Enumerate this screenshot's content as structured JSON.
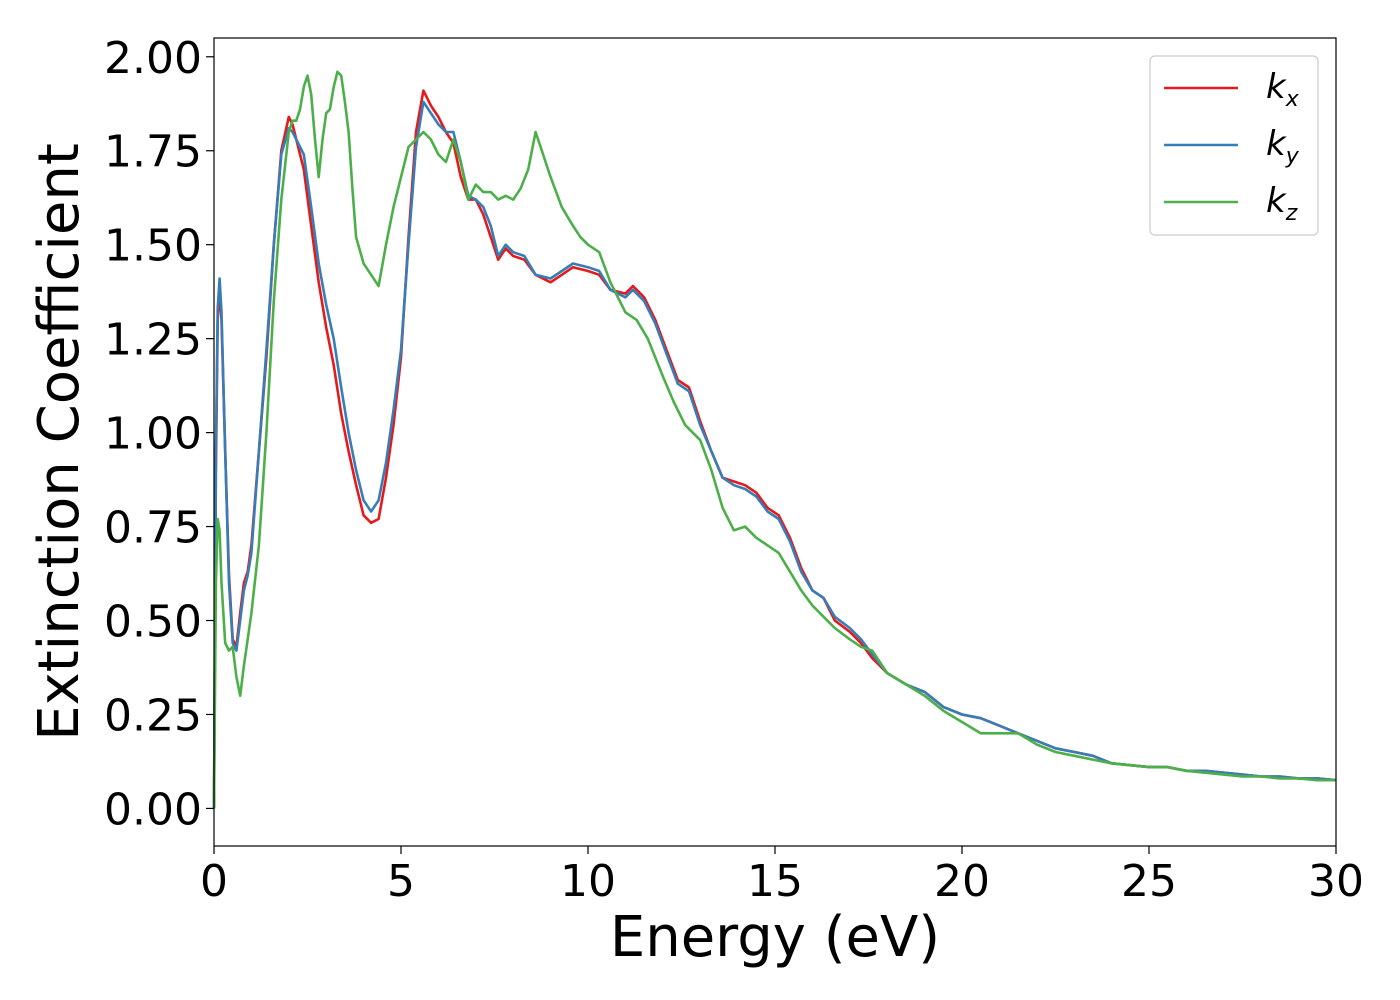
{
  "chart_data": {
    "type": "line",
    "xlabel": "Energy (eV)",
    "ylabel": "Extinction Coefficient",
    "xlim": [
      0,
      30
    ],
    "ylim": [
      -0.1,
      2.05
    ],
    "xticks": [
      0,
      5,
      10,
      15,
      20,
      25,
      30
    ],
    "yticks": [
      0.0,
      0.25,
      0.5,
      0.75,
      1.0,
      1.25,
      1.5,
      1.75,
      2.0
    ],
    "xtick_labels": [
      "0",
      "5",
      "10",
      "15",
      "20",
      "25",
      "30"
    ],
    "ytick_labels": [
      "0.00",
      "0.25",
      "0.50",
      "0.75",
      "1.00",
      "1.25",
      "1.50",
      "1.75",
      "2.00"
    ],
    "grid": false,
    "legend": "top-right",
    "series": [
      {
        "name": "k_x",
        "label_base": "k",
        "label_sub": "x",
        "color": "#e41a1c",
        "x": [
          0,
          0.05,
          0.1,
          0.15,
          0.2,
          0.3,
          0.4,
          0.5,
          0.6,
          0.7,
          0.8,
          0.9,
          1.0,
          1.2,
          1.4,
          1.6,
          1.8,
          2.0,
          2.1,
          2.2,
          2.4,
          2.6,
          2.8,
          3.0,
          3.2,
          3.4,
          3.6,
          3.8,
          4.0,
          4.2,
          4.4,
          4.6,
          4.8,
          5.0,
          5.2,
          5.4,
          5.6,
          5.8,
          6.0,
          6.2,
          6.4,
          6.6,
          6.8,
          7.0,
          7.2,
          7.4,
          7.6,
          7.8,
          8.0,
          8.3,
          8.6,
          9.0,
          9.3,
          9.6,
          10.0,
          10.3,
          10.6,
          11.0,
          11.2,
          11.5,
          11.8,
          12.1,
          12.4,
          12.7,
          13.0,
          13.3,
          13.6,
          13.9,
          14.2,
          14.5,
          14.8,
          15.1,
          15.4,
          15.7,
          16.0,
          16.3,
          16.6,
          17.0,
          17.3,
          17.6,
          18.0,
          18.5,
          19.0,
          19.5,
          20.0,
          20.5,
          21.0,
          21.5,
          22.0,
          22.5,
          23.0,
          23.5,
          24.0,
          24.5,
          25.0,
          25.5,
          26.0,
          26.5,
          27.0,
          27.5,
          28.0,
          28.5,
          29.0,
          29.5,
          30.0
        ],
        "y": [
          0.0,
          0.9,
          1.3,
          1.38,
          1.3,
          0.95,
          0.62,
          0.45,
          0.43,
          0.52,
          0.6,
          0.63,
          0.7,
          0.95,
          1.2,
          1.5,
          1.75,
          1.84,
          1.82,
          1.78,
          1.7,
          1.55,
          1.4,
          1.28,
          1.18,
          1.05,
          0.95,
          0.86,
          0.78,
          0.76,
          0.77,
          0.88,
          1.02,
          1.2,
          1.52,
          1.8,
          1.91,
          1.87,
          1.84,
          1.8,
          1.77,
          1.68,
          1.62,
          1.62,
          1.58,
          1.52,
          1.46,
          1.49,
          1.47,
          1.46,
          1.42,
          1.4,
          1.42,
          1.44,
          1.43,
          1.42,
          1.38,
          1.37,
          1.39,
          1.36,
          1.3,
          1.22,
          1.14,
          1.12,
          1.03,
          0.95,
          0.88,
          0.87,
          0.86,
          0.84,
          0.8,
          0.78,
          0.72,
          0.64,
          0.58,
          0.56,
          0.5,
          0.47,
          0.44,
          0.4,
          0.36,
          0.33,
          0.31,
          0.27,
          0.25,
          0.24,
          0.22,
          0.2,
          0.18,
          0.16,
          0.15,
          0.14,
          0.12,
          0.115,
          0.11,
          0.11,
          0.1,
          0.1,
          0.095,
          0.09,
          0.085,
          0.085,
          0.08,
          0.08,
          0.075
        ]
      },
      {
        "name": "k_y",
        "label_base": "k",
        "label_sub": "y",
        "color": "#377eb8",
        "x": [
          0,
          0.05,
          0.1,
          0.15,
          0.2,
          0.3,
          0.4,
          0.5,
          0.6,
          0.7,
          0.8,
          0.9,
          1.0,
          1.2,
          1.4,
          1.6,
          1.8,
          2.0,
          2.1,
          2.2,
          2.4,
          2.6,
          2.8,
          3.0,
          3.2,
          3.4,
          3.6,
          3.8,
          4.0,
          4.2,
          4.4,
          4.6,
          4.8,
          5.0,
          5.2,
          5.4,
          5.6,
          5.8,
          6.0,
          6.2,
          6.4,
          6.6,
          6.8,
          7.0,
          7.2,
          7.4,
          7.6,
          7.8,
          8.0,
          8.3,
          8.6,
          9.0,
          9.3,
          9.6,
          10.0,
          10.3,
          10.6,
          11.0,
          11.2,
          11.5,
          11.8,
          12.1,
          12.4,
          12.7,
          13.0,
          13.3,
          13.6,
          13.9,
          14.2,
          14.5,
          14.8,
          15.1,
          15.4,
          15.7,
          16.0,
          16.3,
          16.6,
          17.0,
          17.3,
          17.6,
          18.0,
          18.5,
          19.0,
          19.5,
          20.0,
          20.5,
          21.0,
          21.5,
          22.0,
          22.5,
          23.0,
          23.5,
          24.0,
          24.5,
          25.0,
          25.5,
          26.0,
          26.5,
          27.0,
          27.5,
          28.0,
          28.5,
          29.0,
          29.5,
          30.0
        ],
        "y": [
          0.0,
          0.95,
          1.33,
          1.41,
          1.32,
          0.95,
          0.6,
          0.44,
          0.42,
          0.5,
          0.58,
          0.62,
          0.68,
          0.95,
          1.22,
          1.5,
          1.74,
          1.81,
          1.8,
          1.78,
          1.74,
          1.6,
          1.45,
          1.34,
          1.25,
          1.12,
          1.0,
          0.9,
          0.82,
          0.79,
          0.82,
          0.92,
          1.06,
          1.22,
          1.5,
          1.76,
          1.88,
          1.85,
          1.82,
          1.8,
          1.8,
          1.72,
          1.63,
          1.62,
          1.6,
          1.55,
          1.47,
          1.5,
          1.48,
          1.47,
          1.42,
          1.41,
          1.43,
          1.45,
          1.44,
          1.43,
          1.38,
          1.36,
          1.38,
          1.35,
          1.29,
          1.21,
          1.13,
          1.11,
          1.02,
          0.95,
          0.88,
          0.86,
          0.85,
          0.83,
          0.79,
          0.77,
          0.71,
          0.63,
          0.58,
          0.56,
          0.51,
          0.48,
          0.45,
          0.41,
          0.36,
          0.33,
          0.31,
          0.27,
          0.25,
          0.24,
          0.22,
          0.2,
          0.18,
          0.16,
          0.15,
          0.14,
          0.12,
          0.115,
          0.11,
          0.11,
          0.1,
          0.1,
          0.095,
          0.09,
          0.085,
          0.085,
          0.08,
          0.08,
          0.075
        ]
      },
      {
        "name": "k_z",
        "label_base": "k",
        "label_sub": "z",
        "color": "#4daf4a",
        "x": [
          0,
          0.05,
          0.1,
          0.15,
          0.2,
          0.3,
          0.4,
          0.5,
          0.6,
          0.7,
          0.8,
          0.9,
          1.0,
          1.2,
          1.4,
          1.6,
          1.8,
          2.0,
          2.1,
          2.2,
          2.3,
          2.4,
          2.5,
          2.6,
          2.7,
          2.8,
          2.9,
          3.0,
          3.1,
          3.2,
          3.3,
          3.4,
          3.5,
          3.6,
          3.7,
          3.8,
          4.0,
          4.2,
          4.4,
          4.6,
          4.8,
          5.0,
          5.2,
          5.4,
          5.6,
          5.8,
          6.0,
          6.2,
          6.4,
          6.6,
          6.8,
          7.0,
          7.2,
          7.4,
          7.6,
          7.8,
          8.0,
          8.2,
          8.4,
          8.5,
          8.6,
          8.8,
          9.0,
          9.3,
          9.6,
          9.8,
          10.0,
          10.3,
          10.6,
          11.0,
          11.3,
          11.6,
          12.0,
          12.3,
          12.6,
          13.0,
          13.3,
          13.6,
          13.9,
          14.2,
          14.5,
          14.8,
          15.1,
          15.4,
          15.7,
          16.0,
          16.3,
          16.6,
          17.0,
          17.3,
          17.6,
          18.0,
          18.5,
          19.0,
          19.5,
          20.0,
          20.5,
          21.0,
          21.5,
          22.0,
          22.5,
          23.0,
          23.5,
          24.0,
          24.5,
          25.0,
          25.5,
          26.0,
          26.5,
          27.0,
          27.5,
          28.0,
          28.5,
          29.0,
          29.5,
          30.0
        ],
        "y": [
          0.0,
          0.6,
          0.77,
          0.74,
          0.6,
          0.44,
          0.42,
          0.43,
          0.35,
          0.3,
          0.38,
          0.45,
          0.52,
          0.7,
          1.0,
          1.35,
          1.62,
          1.8,
          1.83,
          1.83,
          1.86,
          1.92,
          1.95,
          1.9,
          1.78,
          1.68,
          1.78,
          1.85,
          1.86,
          1.92,
          1.96,
          1.95,
          1.88,
          1.8,
          1.65,
          1.52,
          1.45,
          1.42,
          1.39,
          1.5,
          1.6,
          1.68,
          1.76,
          1.78,
          1.8,
          1.78,
          1.74,
          1.72,
          1.78,
          1.72,
          1.62,
          1.66,
          1.64,
          1.64,
          1.62,
          1.63,
          1.62,
          1.65,
          1.7,
          1.75,
          1.8,
          1.74,
          1.68,
          1.6,
          1.55,
          1.52,
          1.5,
          1.48,
          1.4,
          1.32,
          1.3,
          1.25,
          1.15,
          1.08,
          1.02,
          0.98,
          0.9,
          0.8,
          0.74,
          0.75,
          0.72,
          0.7,
          0.68,
          0.63,
          0.58,
          0.54,
          0.51,
          0.48,
          0.45,
          0.43,
          0.42,
          0.36,
          0.33,
          0.3,
          0.26,
          0.23,
          0.2,
          0.2,
          0.2,
          0.17,
          0.15,
          0.14,
          0.13,
          0.12,
          0.115,
          0.11,
          0.11,
          0.1,
          0.095,
          0.09,
          0.085,
          0.085,
          0.08,
          0.08,
          0.075,
          0.075
        ]
      }
    ]
  },
  "colors": {
    "axis": "#000000",
    "legend_border": "#cccccc",
    "background": "#ffffff"
  }
}
